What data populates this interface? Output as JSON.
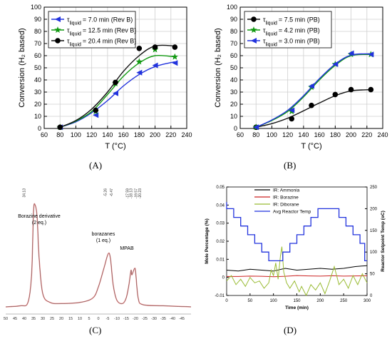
{
  "panels": {
    "A": {
      "caption": "(A)"
    },
    "B": {
      "caption": "(B)"
    },
    "C": {
      "caption": "(C)"
    },
    "D": {
      "caption": "(D)"
    }
  },
  "chart_data": [
    {
      "id": "A",
      "type": "line",
      "xlabel": "T (°C)",
      "ylabel": "Conversion (H₂ based)",
      "xlim": [
        60,
        240
      ],
      "ylim": [
        0,
        100
      ],
      "xticks": [
        60,
        80,
        100,
        120,
        140,
        160,
        180,
        200,
        220,
        240
      ],
      "yticks": [
        0,
        10,
        20,
        30,
        40,
        50,
        60,
        70,
        80,
        90,
        100
      ],
      "grid": true,
      "legend": "top-left",
      "x": [
        80,
        125,
        150,
        180,
        200,
        225
      ],
      "series": [
        {
          "name": "τ_liquid = 7.0 min (Rev B)",
          "marker": "triangle-left",
          "color": "#2233dd",
          "values": [
            1,
            11,
            29,
            46,
            52,
            54
          ],
          "fit": [
            [
              80,
              1
            ],
            [
              100,
              5.5
            ],
            [
              120,
              13
            ],
            [
              140,
              23
            ],
            [
              160,
              35
            ],
            [
              180,
              44.5
            ],
            [
              200,
              51
            ],
            [
              225,
              55
            ]
          ]
        },
        {
          "name": "τ_liquid = 12.5 min (Rev B)",
          "marker": "star",
          "color": "#119911",
          "values": [
            1,
            14,
            37,
            55,
            65,
            59
          ],
          "fit": [
            [
              80,
              1
            ],
            [
              100,
              6
            ],
            [
              120,
              14
            ],
            [
              140,
              28
            ],
            [
              160,
              43
            ],
            [
              180,
              54
            ],
            [
              200,
              60
            ],
            [
              225,
              59
            ]
          ]
        },
        {
          "name": "τ_liquid = 20.4 min (Rev B)",
          "marker": "circle",
          "color": "#111111",
          "values": [
            1,
            15,
            38,
            66,
            67,
            67
          ],
          "fit": [
            [
              80,
              1
            ],
            [
              100,
              6.5
            ],
            [
              120,
              16
            ],
            [
              140,
              30
            ],
            [
              160,
              47
            ],
            [
              180,
              60
            ],
            [
              200,
              68
            ],
            [
              225,
              68
            ]
          ]
        }
      ]
    },
    {
      "id": "B",
      "type": "line",
      "xlabel": "T (°C)",
      "ylabel": "Conversion (H₂ based)",
      "xlim": [
        60,
        240
      ],
      "ylim": [
        0,
        100
      ],
      "xticks": [
        60,
        80,
        100,
        120,
        140,
        160,
        180,
        200,
        220,
        240
      ],
      "yticks": [
        0,
        10,
        20,
        30,
        40,
        50,
        60,
        70,
        80,
        90,
        100
      ],
      "grid": true,
      "legend": "top-left",
      "x": [
        80,
        125,
        150,
        180,
        200,
        225
      ],
      "series": [
        {
          "name": "τ_liquid = 7.5 min (PB)",
          "marker": "circle",
          "color": "#111111",
          "values": [
            1,
            8,
            19,
            28,
            32,
            32
          ],
          "fit": [
            [
              80,
              1
            ],
            [
              100,
              4
            ],
            [
              120,
              8.5
            ],
            [
              140,
              14.5
            ],
            [
              160,
              21
            ],
            [
              180,
              27
            ],
            [
              200,
              31
            ],
            [
              225,
              32
            ]
          ]
        },
        {
          "name": "τ_liquid = 4.2 min (PB)",
          "marker": "star",
          "color": "#119911",
          "values": [
            1,
            14,
            34,
            53,
            61,
            61
          ],
          "fit": [
            [
              80,
              1
            ],
            [
              100,
              6.5
            ],
            [
              120,
              14
            ],
            [
              140,
              26
            ],
            [
              160,
              40
            ],
            [
              180,
              52
            ],
            [
              200,
              60
            ],
            [
              225,
              61
            ]
          ]
        },
        {
          "name": "τ_liquid = 3.0 min (PB)",
          "marker": "triangle-left",
          "color": "#2233dd",
          "values": [
            1,
            15,
            35,
            53,
            62,
            61
          ],
          "fit": [
            [
              80,
              1
            ],
            [
              100,
              7
            ],
            [
              120,
              15
            ],
            [
              140,
              27
            ],
            [
              160,
              41
            ],
            [
              180,
              53
            ],
            [
              200,
              60.5
            ],
            [
              225,
              61.5
            ]
          ]
        }
      ]
    },
    {
      "id": "C",
      "type": "line",
      "xlim": [
        50,
        -50
      ],
      "xticks": [
        50,
        45,
        40,
        35,
        30,
        25,
        20,
        15,
        10,
        5,
        0,
        -5,
        -10,
        -15,
        -20,
        -25,
        -30,
        -35,
        -40,
        -45
      ],
      "grid": false,
      "peak_labels": [
        "34.13",
        "-5.26",
        "-6.47",
        "-17.59",
        "-18.13",
        "-19.57",
        "-20.23"
      ],
      "annotations": [
        "Borazine derivative\n(2 eq.)",
        "borazanes\n(1 eq.)",
        "MPAB"
      ],
      "spectrum": [
        [
          50,
          0
        ],
        [
          42,
          1
        ],
        [
          38,
          4
        ],
        [
          36,
          30
        ],
        [
          35,
          86
        ],
        [
          34.1,
          92
        ],
        [
          33,
          80
        ],
        [
          32,
          45
        ],
        [
          30,
          12
        ],
        [
          26,
          4
        ],
        [
          20,
          3
        ],
        [
          10,
          4
        ],
        [
          3,
          8
        ],
        [
          0,
          18
        ],
        [
          -3,
          35
        ],
        [
          -5.3,
          48
        ],
        [
          -6.5,
          44
        ],
        [
          -8,
          20
        ],
        [
          -10,
          6
        ],
        [
          -13,
          3
        ],
        [
          -15,
          8
        ],
        [
          -16.5,
          20
        ],
        [
          -17.6,
          33
        ],
        [
          -18.1,
          29
        ],
        [
          -19.6,
          35
        ],
        [
          -20.2,
          30
        ],
        [
          -21.5,
          8
        ],
        [
          -24,
          2
        ],
        [
          -35,
          1
        ],
        [
          -50,
          0
        ]
      ]
    },
    {
      "id": "D",
      "type": "line",
      "xlabel": "Time (min)",
      "ylabel": "Mole Percentage (%)",
      "y2label": "Reactor Setpoint Temp (oC)",
      "xlim": [
        0,
        300
      ],
      "ylim": [
        -0.01,
        0.05
      ],
      "y2lim": [
        0,
        250
      ],
      "xticks": [
        0,
        50,
        100,
        150,
        200,
        250,
        300
      ],
      "yticks": [
        -0.01,
        0,
        0.01,
        0.02,
        0.03,
        0.04,
        0.05
      ],
      "y2ticks": [
        0,
        50,
        100,
        150,
        200,
        250
      ],
      "grid": false,
      "legend": "top-center",
      "series": [
        {
          "name": "IR: Ammonia",
          "color": "#000000",
          "axis": "left",
          "values": [
            [
              0,
              0.004
            ],
            [
              25,
              0.0035
            ],
            [
              50,
              0.0045
            ],
            [
              75,
              0.004
            ],
            [
              100,
              0.0035
            ],
            [
              125,
              0.005
            ],
            [
              150,
              0.004
            ],
            [
              175,
              0.0045
            ],
            [
              200,
              0.005
            ],
            [
              225,
              0.0045
            ],
            [
              250,
              0.005
            ],
            [
              275,
              0.006
            ],
            [
              300,
              0.0065
            ]
          ]
        },
        {
          "name": "IR: Borazine",
          "color": "#cc2222",
          "axis": "left",
          "values": [
            [
              0,
              0.0005
            ],
            [
              25,
              0.0005
            ],
            [
              50,
              0.0007
            ],
            [
              75,
              0.0006
            ],
            [
              100,
              0.0004
            ],
            [
              125,
              0.0006
            ],
            [
              150,
              0.001
            ],
            [
              175,
              0.0008
            ],
            [
              200,
              0.0007
            ],
            [
              225,
              0.0009
            ],
            [
              250,
              0.0007
            ],
            [
              275,
              0.0008
            ],
            [
              300,
              0.0009
            ]
          ]
        },
        {
          "name": "IR: Diborane",
          "color": "#99bb33",
          "axis": "left",
          "values": [
            [
              0,
              -0.002
            ],
            [
              10,
              0.001
            ],
            [
              20,
              -0.004
            ],
            [
              30,
              -0.001
            ],
            [
              40,
              -0.005
            ],
            [
              50,
              0.0
            ],
            [
              60,
              -0.003
            ],
            [
              70,
              -0.002
            ],
            [
              80,
              -0.006
            ],
            [
              90,
              -0.003
            ],
            [
              95,
              0.004
            ],
            [
              100,
              0.001
            ],
            [
              105,
              0.008
            ],
            [
              110,
              -0.001
            ],
            [
              115,
              0.012
            ],
            [
              118,
              0.017
            ],
            [
              122,
              0.003
            ],
            [
              128,
              -0.003
            ],
            [
              135,
              -0.006
            ],
            [
              145,
              -0.002
            ],
            [
              155,
              -0.008
            ],
            [
              160,
              -0.005
            ],
            [
              170,
              -0.01
            ],
            [
              180,
              -0.004
            ],
            [
              190,
              -0.007
            ],
            [
              200,
              -0.003
            ],
            [
              210,
              -0.009
            ],
            [
              220,
              -0.002
            ],
            [
              230,
              0.006
            ],
            [
              240,
              -0.004
            ],
            [
              250,
              -0.001
            ],
            [
              260,
              -0.006
            ],
            [
              270,
              0.001
            ],
            [
              280,
              -0.004
            ],
            [
              290,
              0.002
            ],
            [
              300,
              -0.003
            ]
          ]
        },
        {
          "name": "Avg Reactor Temp",
          "color": "#2233dd",
          "axis": "right",
          "values": [
            [
              0,
              215
            ],
            [
              0,
              200
            ],
            [
              15,
              200
            ],
            [
              15,
              180
            ],
            [
              30,
              180
            ],
            [
              30,
              160
            ],
            [
              45,
              160
            ],
            [
              45,
              140
            ],
            [
              60,
              140
            ],
            [
              60,
              120
            ],
            [
              75,
              120
            ],
            [
              75,
              100
            ],
            [
              90,
              100
            ],
            [
              90,
              80
            ],
            [
              120,
              80
            ],
            [
              120,
              100
            ],
            [
              135,
              100
            ],
            [
              135,
              120
            ],
            [
              150,
              120
            ],
            [
              150,
              140
            ],
            [
              165,
              140
            ],
            [
              165,
              160
            ],
            [
              180,
              160
            ],
            [
              180,
              180
            ],
            [
              195,
              180
            ],
            [
              195,
              200
            ],
            [
              240,
              200
            ],
            [
              240,
              180
            ],
            [
              255,
              180
            ],
            [
              255,
              160
            ],
            [
              270,
              160
            ],
            [
              270,
              140
            ],
            [
              285,
              140
            ],
            [
              285,
              120
            ],
            [
              295,
              120
            ],
            [
              295,
              80
            ],
            [
              300,
              80
            ]
          ]
        }
      ]
    }
  ]
}
